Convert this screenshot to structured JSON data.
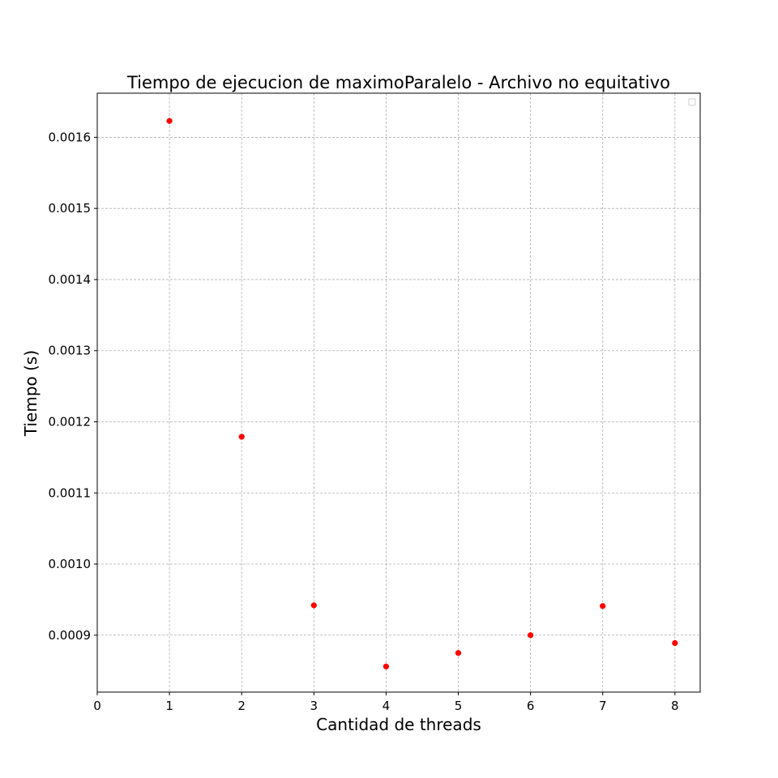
{
  "chart_data": {
    "type": "scatter",
    "title": "Tiempo de ejecucion de maximoParalelo - Archivo no equitativo",
    "xlabel": "Cantidad de threads",
    "ylabel": "Tiempo (s)",
    "xlim": [
      0,
      8.35
    ],
    "ylim": [
      0.00082,
      0.001662
    ],
    "xticks": [
      0,
      1,
      2,
      3,
      4,
      5,
      6,
      7,
      8
    ],
    "xtick_labels": [
      "0",
      "1",
      "2",
      "3",
      "4",
      "5",
      "6",
      "7",
      "8"
    ],
    "yticks": [
      0.0009,
      0.001,
      0.0011,
      0.0012,
      0.0013,
      0.0014,
      0.0015,
      0.0016
    ],
    "ytick_labels": [
      "0.0009",
      "0.0010",
      "0.0011",
      "0.0012",
      "0.0013",
      "0.0014",
      "0.0015",
      "0.0016"
    ],
    "grid": true,
    "legend_position": "top-right",
    "series": [
      {
        "color": "#ff0000",
        "x": [
          1,
          2,
          3,
          4,
          5,
          6,
          7,
          8
        ],
        "y": [
          0.001623,
          0.001179,
          0.000942,
          0.000856,
          0.000875,
          0.0009,
          0.000941,
          0.000889
        ]
      }
    ]
  }
}
